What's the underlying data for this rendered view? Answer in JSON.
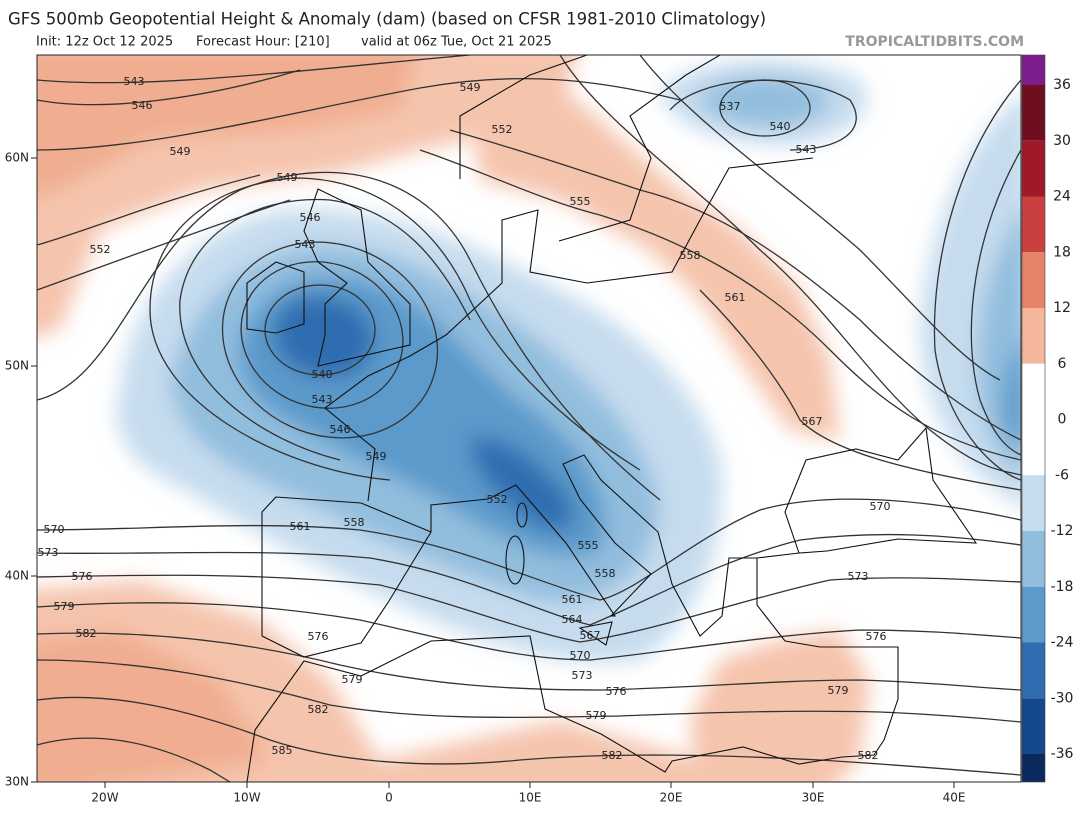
{
  "header": {
    "title": "GFS 500mb Geopotential Height & Anomaly (dam) (based on CFSR 1981-2010 Climatology)",
    "init": "Init: 12z Oct 12 2025",
    "forecast_hour": "Forecast Hour: [210]",
    "valid": "valid at 06z Tue, Oct 21 2025",
    "site": "TROPICALTIDBITS.COM"
  },
  "map": {
    "lat_labels": [
      "60N",
      "50N",
      "40N",
      "30N"
    ],
    "lon_labels": [
      "20W",
      "10W",
      "0",
      "10E",
      "20E",
      "30E",
      "40E"
    ],
    "contour_labels": [
      543,
      546,
      549,
      549,
      549,
      552,
      552,
      555,
      558,
      561,
      567,
      537,
      540,
      543,
      546,
      543,
      540,
      543,
      546,
      549,
      552,
      555,
      558,
      561,
      564,
      567,
      570,
      573,
      576,
      579,
      582,
      570,
      573,
      576,
      579,
      582,
      561,
      558,
      576,
      579,
      582,
      585,
      570,
      573,
      576,
      579,
      582
    ]
  },
  "colorbar": {
    "ticks": [
      36,
      30,
      24,
      18,
      12,
      6,
      0,
      -6,
      -12,
      -18,
      -24,
      -30,
      -36
    ],
    "colors": [
      "#7e1e8e",
      "#6e0e1e",
      "#9e1a28",
      "#c9403e",
      "#e4826a",
      "#f5b79c",
      "#ffffff",
      "#ffffff",
      "#c6dcee",
      "#92bede",
      "#5c9acb",
      "#2f6db0",
      "#144a8c",
      "#0a2a5e"
    ]
  }
}
